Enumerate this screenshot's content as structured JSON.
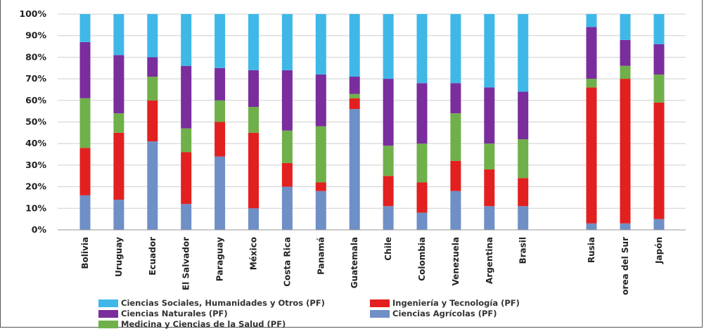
{
  "chart_data": {
    "type": "bar",
    "stacked": true,
    "ylim": [
      0,
      100
    ],
    "yticks": [
      "0%",
      "10%",
      "20%",
      "30%",
      "40%",
      "50%",
      "60%",
      "70%",
      "80%",
      "90%",
      "100%"
    ],
    "grid": true,
    "legend_position": "bottom",
    "categories": [
      "Bolivia",
      "Uruguay",
      "Ecuador",
      "El Salvador",
      "Paraguay",
      "México",
      "Costa Rica",
      "Panamá",
      "Guatemala",
      "Chile",
      "Colombia",
      "Venezuela",
      "Argentina",
      "Brasil",
      "Rusia",
      "Corea del Sur",
      "Japón"
    ],
    "series": [
      {
        "name": "Ciencias Agrícolas (PF)",
        "color": "#6f8fc7",
        "values": [
          16,
          14,
          41,
          12,
          34,
          10,
          20,
          18,
          56,
          11,
          8,
          18,
          11,
          11,
          3,
          3,
          5
        ]
      },
      {
        "name": "Ingeniería y Tecnología (PF)",
        "color": "#e2201f",
        "values": [
          22,
          31,
          19,
          24,
          16,
          35,
          11,
          4,
          5,
          14,
          14,
          14,
          17,
          13,
          63,
          67,
          54
        ]
      },
      {
        "name": "Medicina y Ciencias de la Salud (PF)",
        "color": "#6fb04a",
        "values": [
          23,
          9,
          11,
          11,
          10,
          12,
          15,
          26,
          2,
          14,
          18,
          22,
          12,
          18,
          4,
          6,
          13
        ]
      },
      {
        "name": "Ciencias Naturales (PF)",
        "color": "#7a2d9c",
        "values": [
          26,
          27,
          9,
          29,
          15,
          17,
          28,
          24,
          8,
          31,
          28,
          14,
          26,
          22,
          24,
          12,
          14
        ]
      },
      {
        "name": "Ciencias Sociales, Humanidades y Otros (PF)",
        "color": "#3fb8e8",
        "values": [
          13,
          19,
          20,
          24,
          25,
          26,
          26,
          28,
          29,
          30,
          32,
          32,
          34,
          36,
          6,
          12,
          14
        ]
      }
    ]
  },
  "legend": {
    "social": "Ciencias Sociales, Humanidades y Otros (PF)",
    "ingenieria": "Ingeniería y Tecnología (PF)",
    "naturales": "Ciencias Naturales (PF)",
    "agricolas": "Ciencias Agrícolas (PF)",
    "medicina": "Medicina y Ciencias de la Salud (PF)"
  }
}
